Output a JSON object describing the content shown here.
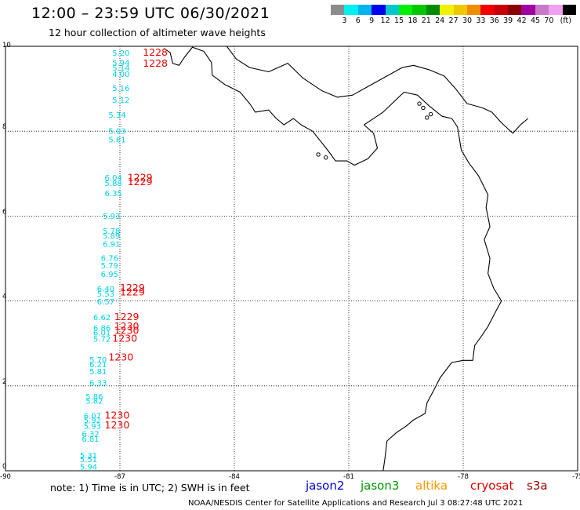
{
  "title": "12:00 – 23:59 UTC 06/30/2021",
  "subtitle": "12 hour collection of altimeter wave heights",
  "colorbar": {
    "colors": [
      "#8c8c8c",
      "#00f0f0",
      "#00b4f0",
      "#0000f0",
      "#00c8c8",
      "#00f000",
      "#00c800",
      "#008c00",
      "#f0f000",
      "#f0c800",
      "#f08c00",
      "#f00000",
      "#c80000",
      "#8c0000",
      "#a000a0",
      "#c878c8",
      "#f0a0f0",
      "#000000"
    ],
    "labels": [
      "3",
      "6",
      "9",
      "12",
      "15",
      "18",
      "21",
      "24",
      "27",
      "30",
      "33",
      "36",
      "39",
      "42",
      "45",
      "70",
      "(ft)"
    ]
  },
  "map": {
    "lon_range": [
      -90,
      -75
    ],
    "lat_range": [
      0,
      10
    ],
    "x_ticks": [
      "-90",
      "-87",
      "-84",
      "-81",
      "-78",
      "-75"
    ],
    "y_ticks": [
      "10",
      "8",
      "6",
      "4",
      "2",
      "0"
    ]
  },
  "swh_labels": [
    {
      "text": "5.20",
      "lon": -87.2,
      "lat": 9.78
    },
    {
      "text": "5.94",
      "lon": -87.2,
      "lat": 9.55
    },
    {
      "text": "5.14",
      "lon": -87.2,
      "lat": 9.43
    },
    {
      "text": "4.00",
      "lon": -87.2,
      "lat": 9.28
    },
    {
      "text": "5.16",
      "lon": -87.2,
      "lat": 8.95
    },
    {
      "text": "5.12",
      "lon": -87.2,
      "lat": 8.67
    },
    {
      "text": "5.34",
      "lon": -87.3,
      "lat": 8.32
    },
    {
      "text": "5.03",
      "lon": -87.3,
      "lat": 7.94
    },
    {
      "text": "5.61",
      "lon": -87.3,
      "lat": 7.74
    },
    {
      "text": "6.04",
      "lon": -87.4,
      "lat": 6.84
    },
    {
      "text": "5.88",
      "lon": -87.4,
      "lat": 6.71
    },
    {
      "text": "6.35",
      "lon": -87.4,
      "lat": 6.47
    },
    {
      "text": "5.93",
      "lon": -87.45,
      "lat": 5.93
    },
    {
      "text": "5.78",
      "lon": -87.45,
      "lat": 5.58
    },
    {
      "text": "5.89",
      "lon": -87.45,
      "lat": 5.47
    },
    {
      "text": "6.91",
      "lon": -87.45,
      "lat": 5.28
    },
    {
      "text": "6.76",
      "lon": -87.5,
      "lat": 4.94
    },
    {
      "text": "5.79",
      "lon": -87.5,
      "lat": 4.77
    },
    {
      "text": "6.95",
      "lon": -87.5,
      "lat": 4.57
    },
    {
      "text": "6.40",
      "lon": -87.6,
      "lat": 4.22
    },
    {
      "text": "5.53",
      "lon": -87.6,
      "lat": 4.1
    },
    {
      "text": "6.57",
      "lon": -87.6,
      "lat": 3.92
    },
    {
      "text": "6.62",
      "lon": -87.7,
      "lat": 3.55
    },
    {
      "text": "6.86",
      "lon": -87.7,
      "lat": 3.3
    },
    {
      "text": "6.01",
      "lon": -87.7,
      "lat": 3.19
    },
    {
      "text": "5.72",
      "lon": -87.7,
      "lat": 3.04
    },
    {
      "text": "5.70",
      "lon": -87.8,
      "lat": 2.55
    },
    {
      "text": "6.21",
      "lon": -87.8,
      "lat": 2.44
    },
    {
      "text": "5.81",
      "lon": -87.8,
      "lat": 2.27
    },
    {
      "text": "6.33",
      "lon": -87.8,
      "lat": 2.01
    },
    {
      "text": "5.86",
      "lon": -87.9,
      "lat": 1.68
    },
    {
      "text": "5.82",
      "lon": -87.9,
      "lat": 1.58
    },
    {
      "text": "6.07",
      "lon": -87.95,
      "lat": 1.23
    },
    {
      "text": "5.92",
      "lon": -87.95,
      "lat": 1.13
    },
    {
      "text": "5.93",
      "lon": -87.95,
      "lat": 0.99
    },
    {
      "text": "6.32",
      "lon": -88.0,
      "lat": 0.8
    },
    {
      "text": "6.81",
      "lon": -88.0,
      "lat": 0.68
    },
    {
      "text": "5.31",
      "lon": -88.05,
      "lat": 0.3
    },
    {
      "text": "5.51",
      "lon": -88.05,
      "lat": 0.2
    },
    {
      "text": "5.94",
      "lon": -88.05,
      "lat": 0.03
    }
  ],
  "time_labels": [
    {
      "text": "1228",
      "lon": -86.4,
      "lat": 9.78
    },
    {
      "text": "1228",
      "lon": -86.4,
      "lat": 9.52
    },
    {
      "text": "1229",
      "lon": -86.8,
      "lat": 6.83
    },
    {
      "text": "1229",
      "lon": -86.8,
      "lat": 6.73
    },
    {
      "text": "1229",
      "lon": -87.0,
      "lat": 4.23
    },
    {
      "text": "1229",
      "lon": -87.0,
      "lat": 4.13
    },
    {
      "text": "1229",
      "lon": -87.15,
      "lat": 3.55
    },
    {
      "text": "1230",
      "lon": -87.15,
      "lat": 3.33
    },
    {
      "text": "1230",
      "lon": -87.15,
      "lat": 3.23
    },
    {
      "text": "1230",
      "lon": -87.2,
      "lat": 3.04
    },
    {
      "text": "1230",
      "lon": -87.3,
      "lat": 2.6
    },
    {
      "text": "1230",
      "lon": -87.4,
      "lat": 1.23
    },
    {
      "text": "1230",
      "lon": -87.4,
      "lat": 1.0
    }
  ],
  "coastline": [
    [
      -85.85,
      9.95
    ],
    [
      -85.68,
      9.85
    ],
    [
      -85.62,
      9.6
    ],
    [
      -85.45,
      9.55
    ],
    [
      -85.3,
      9.75
    ],
    [
      -85.1,
      9.98
    ],
    [
      -84.8,
      9.88
    ],
    [
      -84.6,
      9.62
    ],
    [
      -84.58,
      9.32
    ],
    [
      -84.25,
      9.1
    ],
    [
      -83.85,
      8.92
    ],
    [
      -83.6,
      8.65
    ],
    [
      -83.45,
      8.45
    ],
    [
      -83.1,
      8.5
    ],
    [
      -82.9,
      8.3
    ],
    [
      -82.7,
      8.15
    ],
    [
      -82.45,
      8.3
    ],
    [
      -82.25,
      8.15
    ],
    [
      -81.95,
      8.0
    ],
    [
      -81.55,
      7.55
    ],
    [
      -81.35,
      7.3
    ],
    [
      -81.05,
      7.3
    ],
    [
      -80.85,
      7.2
    ],
    [
      -80.5,
      7.35
    ],
    [
      -80.25,
      7.6
    ],
    [
      -80.35,
      7.95
    ],
    [
      -80.6,
      8.15
    ],
    [
      -80.1,
      8.45
    ],
    [
      -79.75,
      8.75
    ],
    [
      -79.55,
      8.92
    ],
    [
      -79.2,
      8.85
    ],
    [
      -78.9,
      8.6
    ],
    [
      -78.55,
      8.35
    ],
    [
      -78.3,
      8.3
    ],
    [
      -78.15,
      8.1
    ],
    [
      -78.05,
      7.55
    ],
    [
      -77.85,
      7.25
    ],
    [
      -77.6,
      6.95
    ],
    [
      -77.35,
      6.5
    ],
    [
      -77.4,
      6.2
    ],
    [
      -77.3,
      5.75
    ],
    [
      -77.45,
      5.45
    ],
    [
      -77.3,
      5.0
    ],
    [
      -77.35,
      4.65
    ],
    [
      -77.2,
      4.3
    ],
    [
      -77.0,
      4.0
    ],
    [
      -77.15,
      3.75
    ],
    [
      -77.35,
      3.4
    ],
    [
      -77.5,
      3.2
    ],
    [
      -77.7,
      2.95
    ],
    [
      -77.75,
      2.6
    ],
    [
      -78.0,
      2.6
    ],
    [
      -78.3,
      2.55
    ],
    [
      -78.6,
      2.2
    ],
    [
      -78.8,
      1.85
    ],
    [
      -78.95,
      1.6
    ],
    [
      -79.0,
      1.35
    ],
    [
      -79.3,
      1.2
    ],
    [
      -79.5,
      1.05
    ],
    [
      -79.75,
      0.9
    ],
    [
      -80.0,
      0.7
    ],
    [
      -80.05,
      0.3
    ],
    [
      -80.1,
      0.0
    ]
  ],
  "north_coast": [
    [
      -84.2,
      10.0
    ],
    [
      -83.95,
      9.7
    ],
    [
      -83.6,
      9.5
    ],
    [
      -83.1,
      9.4
    ],
    [
      -82.6,
      9.6
    ],
    [
      -82.2,
      9.25
    ],
    [
      -81.7,
      8.95
    ],
    [
      -81.3,
      8.8
    ],
    [
      -80.9,
      8.85
    ],
    [
      -80.5,
      9.05
    ],
    [
      -80.0,
      9.3
    ],
    [
      -79.6,
      9.5
    ],
    [
      -79.3,
      9.55
    ],
    [
      -78.9,
      9.45
    ],
    [
      -78.5,
      9.3
    ],
    [
      -78.2,
      9.0
    ],
    [
      -77.9,
      8.65
    ],
    [
      -77.5,
      8.55
    ],
    [
      -77.25,
      8.45
    ],
    [
      -77.0,
      8.2
    ],
    [
      -76.7,
      7.95
    ],
    [
      -76.5,
      8.15
    ],
    [
      -76.3,
      8.3
    ]
  ],
  "islands": [
    {
      "lon": -81.8,
      "lat": 7.45
    },
    {
      "lon": -81.6,
      "lat": 7.38
    },
    {
      "lon": -79.05,
      "lat": 8.55
    },
    {
      "lon": -78.85,
      "lat": 8.4
    },
    {
      "lon": -78.95,
      "lat": 8.32
    },
    {
      "lon": -79.15,
      "lat": 8.65
    }
  ],
  "note": "note: 1) Time is in UTC; 2) SWH is in feet",
  "satellites": [
    {
      "name": "jason2",
      "color": "#0000dd"
    },
    {
      "name": "jason3",
      "color": "#009900"
    },
    {
      "name": "altika",
      "color": "#ff9900"
    },
    {
      "name": "cryosat",
      "color": "#dd0000"
    },
    {
      "name": "s3a",
      "color": "#990000"
    }
  ],
  "credit": "NOAA/NESDIS Center for Satellite Applications and Research   Jul  3 08:27:48 UTC 2021",
  "colors": {
    "swh": "#00d2e6",
    "time": "#ee0000",
    "coast": "#000000",
    "grid": "#000000"
  }
}
